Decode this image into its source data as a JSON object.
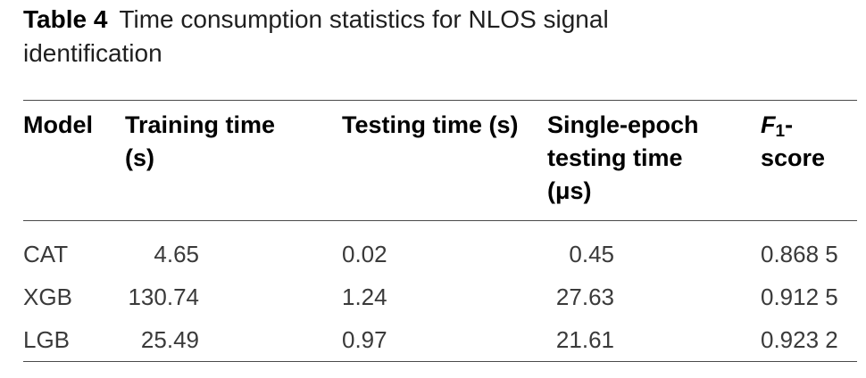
{
  "title": {
    "label": "Table 4",
    "caption": "Time consumption statistics for NLOS signal\nidentification"
  },
  "table": {
    "columns": [
      {
        "key": "model",
        "label": "Model"
      },
      {
        "key": "training",
        "label": "Training time\n(s)"
      },
      {
        "key": "testing",
        "label": "Testing time (s)"
      },
      {
        "key": "epoch",
        "label": "Single-epoch\ntesting time\n(μs)"
      },
      {
        "key": "f1",
        "label_prefix": "F",
        "label_sub": "1",
        "label_suffix": "-score"
      }
    ],
    "rows": [
      {
        "model": "CAT",
        "training": "4.65",
        "testing": "0.02",
        "epoch": "0.45",
        "f1": "0.868 5"
      },
      {
        "model": "XGB",
        "training": "130.74",
        "testing": "1.24",
        "epoch": "27.63",
        "f1": "0.912 5"
      },
      {
        "model": "LGB",
        "training": "25.49",
        "testing": "0.97",
        "epoch": "21.61",
        "f1": "0.923 2"
      }
    ]
  },
  "colors": {
    "rule": "#4a4a4a",
    "heading_text": "#000000",
    "body_text": "#3a3a3a",
    "background": "#ffffff"
  }
}
